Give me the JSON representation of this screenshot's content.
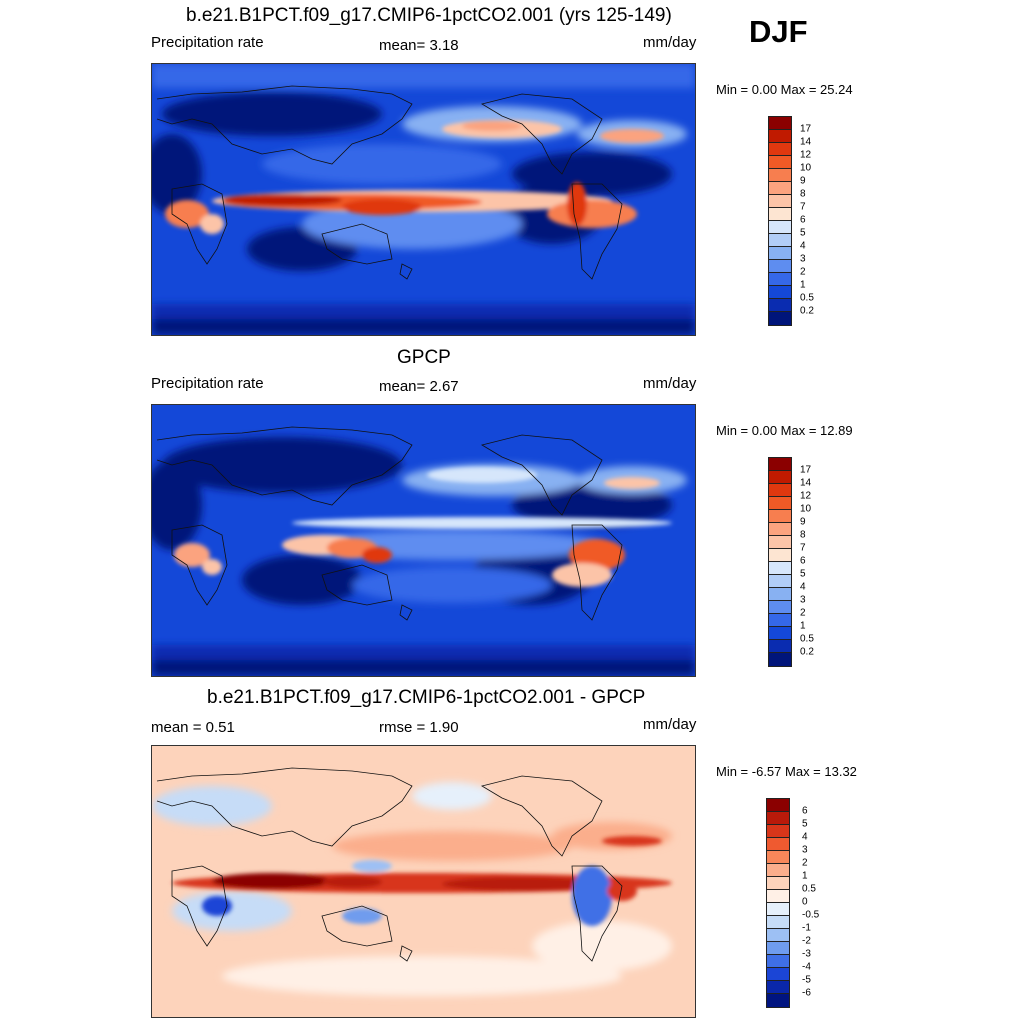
{
  "season": "DJF",
  "panels": [
    {
      "title": "b.e21.B1PCT.f09_g17.CMIP6-1pctCO2.001 (yrs 125-149)",
      "left": "Precipitation rate",
      "center": "mean=   3.18",
      "right": "mm/day",
      "minmax": "Min =   0.00 Max =  25.24",
      "colorbar": {
        "labels": [
          "17",
          "14",
          "12",
          "10",
          "9",
          "8",
          "7",
          "6",
          "5",
          "4",
          "3",
          "2",
          "1",
          "0.5",
          "0.2"
        ],
        "colors": [
          "#8b0000",
          "#c01a00",
          "#e0380f",
          "#f05a26",
          "#f77e4f",
          "#fba37f",
          "#fcc4a8",
          "#fde5d2",
          "#d6e6fb",
          "#b1cdf7",
          "#88b1f2",
          "#5e8df0",
          "#3568e8",
          "#1448d8",
          "#0a2cb0",
          "#00157a"
        ]
      }
    },
    {
      "title": "GPCP",
      "left": "Precipitation rate",
      "center": "mean=   2.67",
      "right": "mm/day",
      "minmax": "Min =   0.00 Max =  12.89",
      "colorbar": {
        "labels": [
          "17",
          "14",
          "12",
          "10",
          "9",
          "8",
          "7",
          "6",
          "5",
          "4",
          "3",
          "2",
          "1",
          "0.5",
          "0.2"
        ],
        "colors": [
          "#8b0000",
          "#c01a00",
          "#e0380f",
          "#f05a26",
          "#f77e4f",
          "#fba37f",
          "#fcc4a8",
          "#fde5d2",
          "#d6e6fb",
          "#b1cdf7",
          "#88b1f2",
          "#5e8df0",
          "#3568e8",
          "#1448d8",
          "#0a2cb0",
          "#00157a"
        ]
      }
    },
    {
      "title": "b.e21.B1PCT.f09_g17.CMIP6-1pctCO2.001 - GPCP",
      "left": "mean =   0.51",
      "center": "rmse =   1.90",
      "right": "mm/day",
      "minmax": "Min =  -6.57 Max =  13.32",
      "colorbar": {
        "labels": [
          "6",
          "5",
          "4",
          "3",
          "2",
          "1",
          "0.5",
          "0",
          "-0.5",
          "-1",
          "-2",
          "-3",
          "-4",
          "-5",
          "-6"
        ],
        "colors": [
          "#8b0000",
          "#b81a0a",
          "#d8361a",
          "#ef5a30",
          "#f8875a",
          "#fbae8c",
          "#fdd3bb",
          "#fff0e6",
          "#e6f0fb",
          "#c6dcf7",
          "#9dc0f4",
          "#6f9cee",
          "#3f6fe6",
          "#1b45d6",
          "#0a27aa",
          "#001480"
        ]
      }
    }
  ]
}
